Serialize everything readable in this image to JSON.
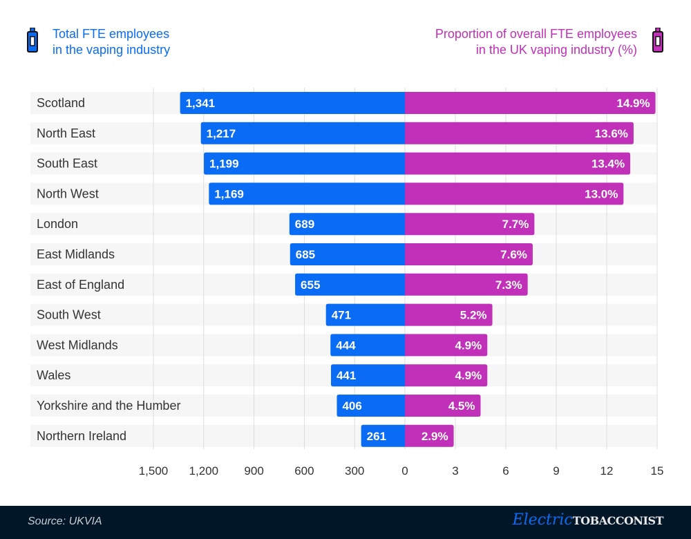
{
  "chart_data": {
    "type": "bar",
    "categories": [
      "Scotland",
      "North East",
      "South East",
      "North West",
      "London",
      "East Midlands",
      "East of England",
      "South West",
      "West Midlands",
      "Wales",
      "Yorkshire and the Humber",
      "Northern Ireland"
    ],
    "series": [
      {
        "name": "Total FTE employees in the vaping industry",
        "values": [
          1341,
          1217,
          1199,
          1169,
          689,
          685,
          655,
          471,
          444,
          441,
          406,
          261
        ],
        "labels": [
          "1,341",
          "1,217",
          "1,199",
          "1,169",
          "689",
          "685",
          "655",
          "471",
          "444",
          "441",
          "406",
          "261"
        ],
        "color": "#0a6cf5",
        "xlim": [
          1500,
          0
        ],
        "ticks": [
          "1,500",
          "1,200",
          "900",
          "600",
          "300",
          "0"
        ]
      },
      {
        "name": "Proportion of overall FTE employees in the UK vaping industry (%)",
        "values": [
          14.9,
          13.6,
          13.4,
          13.0,
          7.7,
          7.6,
          7.3,
          5.2,
          4.9,
          4.9,
          4.5,
          2.9
        ],
        "labels": [
          "14.9%",
          "13.6%",
          "13.4%",
          "13.0%",
          "7.7%",
          "7.6%",
          "7.3%",
          "5.2%",
          "4.9%",
          "4.9%",
          "4.5%",
          "2.9%"
        ],
        "color": "#c030b8",
        "xlim": [
          0,
          15
        ],
        "ticks": [
          "3",
          "6",
          "9",
          "12",
          "15"
        ]
      }
    ],
    "grid": true
  },
  "legend": {
    "left_line1": "Total FTE employees",
    "left_line2": "in the vaping industry",
    "right_line1": "Proportion of overall FTE employees",
    "right_line2": "in the UK vaping industry (%)",
    "icon": "vape-icon"
  },
  "footer": {
    "source": "Source: UKVIA",
    "logo_script": "Electric",
    "logo_bold": "TOBACCONIST"
  }
}
